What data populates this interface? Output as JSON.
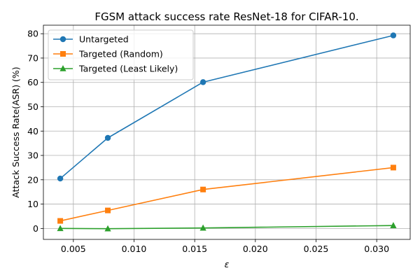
{
  "chart_data": {
    "type": "line",
    "title": "FGSM attack success rate ResNet-18 for CIFAR-10.",
    "xlabel": "ε",
    "ylabel": "Attack Success Rate(ASR) (%)",
    "x": [
      0.00392,
      0.00784,
      0.01569,
      0.03137
    ],
    "xlim": [
      0.00253,
      0.03276
    ],
    "ylim": [
      -4.5,
      83.5
    ],
    "xticks": [
      0.005,
      0.01,
      0.015,
      0.02,
      0.025,
      0.03
    ],
    "xtick_labels": [
      "0.005",
      "0.010",
      "0.015",
      "0.020",
      "0.025",
      "0.030"
    ],
    "yticks": [
      0,
      10,
      20,
      30,
      40,
      50,
      60,
      70,
      80
    ],
    "ytick_labels": [
      "0",
      "10",
      "20",
      "30",
      "40",
      "50",
      "60",
      "70",
      "80"
    ],
    "grid": true,
    "legend_position": "upper-left",
    "series": [
      {
        "name": "Untargeted",
        "values": [
          20.5,
          37.2,
          60.1,
          79.3
        ],
        "color": "#1f77b4",
        "marker": "circle"
      },
      {
        "name": "Targeted (Random)",
        "values": [
          3.1,
          7.4,
          16.0,
          25.0
        ],
        "color": "#ff7f0e",
        "marker": "square"
      },
      {
        "name": "Targeted (Least Likely)",
        "values": [
          0.0,
          -0.1,
          0.2,
          1.2
        ],
        "color": "#2ca02c",
        "marker": "triangle"
      }
    ]
  }
}
